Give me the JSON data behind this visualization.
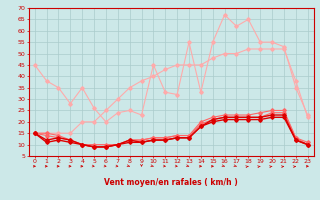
{
  "xlabel": "Vent moyen/en rafales ( km/h )",
  "bg_color": "#cce8e8",
  "grid_color": "#aacccc",
  "x": [
    0,
    1,
    2,
    3,
    4,
    5,
    6,
    7,
    8,
    9,
    10,
    11,
    12,
    13,
    14,
    15,
    16,
    17,
    18,
    19,
    20,
    21,
    22,
    23
  ],
  "ylim": [
    5,
    70
  ],
  "yticks": [
    5,
    10,
    15,
    20,
    25,
    30,
    35,
    40,
    45,
    50,
    55,
    60,
    65,
    70
  ],
  "series": [
    {
      "color": "#ffaaaa",
      "values": [
        45,
        38,
        35,
        28,
        35,
        26,
        20,
        24,
        25,
        23,
        45,
        33,
        32,
        55,
        33,
        55,
        67,
        62,
        65,
        55,
        55,
        53,
        35,
        23
      ],
      "linewidth": 0.8,
      "marker": "D",
      "markersize": 1.8
    },
    {
      "color": "#ffaaaa",
      "values": [
        15,
        15,
        15,
        15,
        20,
        20,
        25,
        30,
        35,
        38,
        40,
        43,
        45,
        45,
        45,
        48,
        50,
        50,
        52,
        52,
        52,
        52,
        38,
        22
      ],
      "linewidth": 0.8,
      "marker": "D",
      "markersize": 1.8
    },
    {
      "color": "#ff6666",
      "values": [
        15,
        14,
        13,
        12,
        10,
        10,
        10,
        10,
        12,
        12,
        13,
        13,
        14,
        14,
        20,
        22,
        23,
        23,
        23,
        24,
        25,
        25,
        13,
        11
      ],
      "linewidth": 0.8,
      "marker": "D",
      "markersize": 1.8
    },
    {
      "color": "#ff6666",
      "values": [
        15,
        15,
        14,
        12,
        10,
        9,
        9,
        10,
        12,
        12,
        13,
        13,
        14,
        14,
        19,
        21,
        22,
        22,
        22,
        22,
        24,
        24,
        13,
        10
      ],
      "linewidth": 0.8,
      "marker": "D",
      "markersize": 1.8
    },
    {
      "color": "#dd0000",
      "values": [
        15,
        12,
        13,
        12,
        10,
        9,
        9,
        10,
        12,
        11,
        12,
        12,
        13,
        13,
        18,
        21,
        22,
        22,
        22,
        22,
        23,
        23,
        12,
        10
      ],
      "linewidth": 1.0,
      "marker": "D",
      "markersize": 1.8
    },
    {
      "color": "#dd0000",
      "values": [
        15,
        11,
        12,
        11,
        10,
        9,
        9,
        10,
        11,
        11,
        12,
        12,
        13,
        13,
        18,
        20,
        21,
        21,
        21,
        21,
        22,
        22,
        12,
        10
      ],
      "linewidth": 1.0,
      "marker": "D",
      "markersize": 1.8
    }
  ],
  "arrow_angles": [
    90,
    90,
    90,
    90,
    90,
    60,
    60,
    60,
    45,
    0,
    45,
    60,
    60,
    45,
    90,
    90,
    45,
    45,
    135,
    135,
    135,
    135,
    135,
    90
  ],
  "label_color": "#cc0000",
  "axis_color": "#cc0000",
  "tick_fontsize": 4.5,
  "xlabel_fontsize": 5.5
}
